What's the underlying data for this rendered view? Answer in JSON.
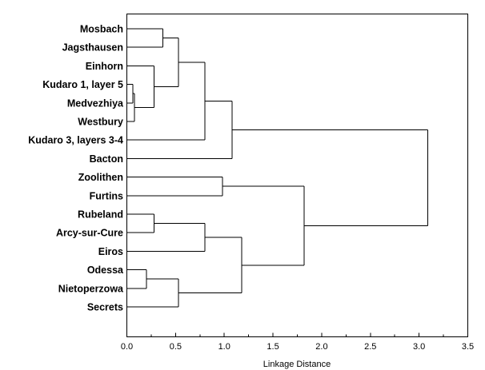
{
  "chart_data": {
    "type": "dendrogram",
    "orientation": "horizontal",
    "title": "",
    "xlabel": "Linkage Distance",
    "ylabel": "",
    "xlim": [
      0.0,
      3.5
    ],
    "xticks": [
      0.0,
      0.5,
      1.0,
      1.5,
      2.0,
      2.5,
      3.0,
      3.5
    ],
    "xtick_labels": [
      "0.0",
      "0.5",
      "1.0",
      "1.5",
      "2.0",
      "2.5",
      "3.0",
      "3.5"
    ],
    "leaves": [
      "Mosbach",
      "Jagsthausen",
      "Einhorn",
      "Kudaro 1, layer 5",
      "Medvezhiya",
      "Westbury",
      "Kudaro 3, layers 3-4",
      "Bacton",
      "Zoolithen",
      "Furtins",
      "Rubeland",
      "Arcy-sur-Cure",
      "Eiros",
      "Odessa",
      "Nietoperzowa",
      "Secrets"
    ],
    "merges": [
      {
        "a": 3,
        "b": 4,
        "distance": 0.06
      },
      {
        "a": 16,
        "b": 5,
        "distance": 0.08
      },
      {
        "a": 13,
        "b": 14,
        "distance": 0.2
      },
      {
        "a": 2,
        "b": 17,
        "distance": 0.28
      },
      {
        "a": 10,
        "b": 11,
        "distance": 0.28
      },
      {
        "a": 0,
        "b": 1,
        "distance": 0.37
      },
      {
        "a": 21,
        "b": 19,
        "distance": 0.53
      },
      {
        "a": 18,
        "b": 15,
        "distance": 0.53
      },
      {
        "a": 22,
        "b": 6,
        "distance": 0.8
      },
      {
        "a": 20,
        "b": 12,
        "distance": 0.8
      },
      {
        "a": 8,
        "b": 9,
        "distance": 0.98
      },
      {
        "a": 24,
        "b": 7,
        "distance": 1.08
      },
      {
        "a": 25,
        "b": 23,
        "distance": 1.18
      },
      {
        "a": 26,
        "b": 28,
        "distance": 1.82
      },
      {
        "a": 27,
        "b": 29,
        "distance": 3.09
      }
    ]
  }
}
